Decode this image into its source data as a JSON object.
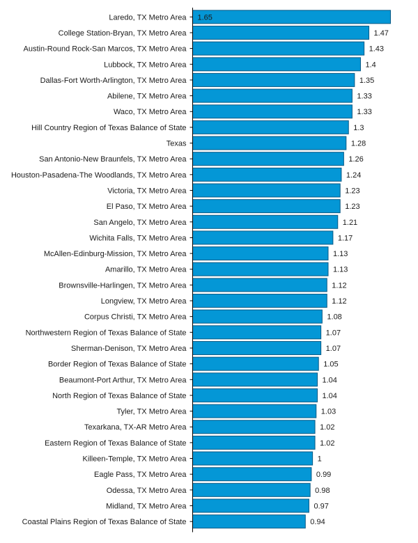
{
  "chart_data": {
    "type": "bar",
    "orientation": "horizontal",
    "title": "",
    "xlabel": "",
    "ylabel": "",
    "xlim": [
      0,
      1.65
    ],
    "grid": false,
    "legend": "none",
    "bar_color": "#0497d6",
    "bar_edge_color": "#0b5a85",
    "categories": [
      "Laredo, TX Metro Area",
      "College Station-Bryan, TX Metro Area",
      "Austin-Round Rock-San Marcos, TX Metro Area",
      "Lubbock, TX Metro Area",
      "Dallas-Fort Worth-Arlington, TX Metro Area",
      "Abilene, TX Metro Area",
      "Waco, TX Metro Area",
      "Hill Country Region of Texas Balance of State",
      "Texas",
      "San Antonio-New Braunfels, TX Metro Area",
      "Houston-Pasadena-The Woodlands, TX Metro Area",
      "Victoria, TX Metro Area",
      "El Paso, TX Metro Area",
      "San Angelo, TX Metro Area",
      "Wichita Falls, TX Metro Area",
      "McAllen-Edinburg-Mission, TX Metro Area",
      "Amarillo, TX Metro Area",
      "Brownsville-Harlingen, TX Metro Area",
      "Longview, TX Metro Area",
      "Corpus Christi, TX Metro Area",
      "Northwestern Region of Texas Balance of State",
      "Sherman-Denison, TX Metro Area",
      "Border Region of Texas Balance of State",
      "Beaumont-Port Arthur, TX Metro Area",
      "North Region of Texas Balance of State",
      "Tyler, TX Metro Area",
      "Texarkana, TX-AR Metro Area",
      "Eastern Region of Texas Balance of State",
      "Killeen-Temple, TX Metro Area",
      "Eagle Pass, TX Metro Area",
      "Odessa, TX Metro Area",
      "Midland, TX Metro Area",
      "Coastal Plains Region of Texas Balance of State"
    ],
    "values": [
      1.65,
      1.47,
      1.43,
      1.4,
      1.35,
      1.33,
      1.33,
      1.3,
      1.28,
      1.26,
      1.24,
      1.23,
      1.23,
      1.21,
      1.17,
      1.13,
      1.13,
      1.12,
      1.12,
      1.08,
      1.07,
      1.07,
      1.05,
      1.04,
      1.04,
      1.03,
      1.02,
      1.02,
      1,
      0.99,
      0.98,
      0.97,
      0.94
    ],
    "data_labels": [
      "1.65",
      "1.47",
      "1.43",
      "1.4",
      "1.35",
      "1.33",
      "1.33",
      "1.3",
      "1.28",
      "1.26",
      "1.24",
      "1.23",
      "1.23",
      "1.21",
      "1.17",
      "1.13",
      "1.13",
      "1.12",
      "1.12",
      "1.08",
      "1.07",
      "1.07",
      "1.05",
      "1.04",
      "1.04",
      "1.03",
      "1.02",
      "1.02",
      "1",
      "0.99",
      "0.98",
      "0.97",
      "0.94"
    ]
  }
}
